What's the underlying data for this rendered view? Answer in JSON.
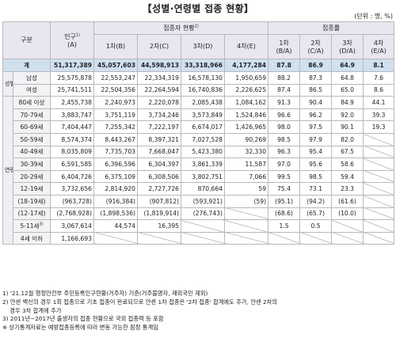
{
  "title": "【성별·연령별 접종 현황】",
  "unit": "(단위 : 명, %)",
  "header": {
    "category": "구분",
    "population": "인구",
    "population_sup": "1)",
    "population_sub": "(A)",
    "vaccinated": "접종자 현황",
    "vaccinated_sup": "2)",
    "rate": "접종률",
    "dose1": "1차(B)",
    "dose2": "2차(C)",
    "dose3": "3차(D)",
    "dose4": "4차(E)",
    "r1": "1차",
    "r1b": "(B/A)",
    "r2": "2차",
    "r2b": "(C/A)",
    "r3": "3차",
    "r3b": "(D/A)",
    "r4": "4차",
    "r4b": "(E/A)"
  },
  "total": {
    "label": "계",
    "pop": "51,317,389",
    "d1": "45,057,603",
    "d2": "44,598,913",
    "d3": "33,318,966",
    "d4": "4,177,284",
    "r1": "87.8",
    "r2": "86.9",
    "r3": "64.9",
    "r4": "8.1"
  },
  "gender_group": "성별",
  "gender": [
    {
      "label": "남성",
      "pop": "25,575,878",
      "d1": "22,553,247",
      "d2": "22,334,319",
      "d3": "16,578,130",
      "d4": "1,950,659",
      "r1": "88.2",
      "r2": "87.3",
      "r3": "64.8",
      "r4": "7.6"
    },
    {
      "label": "여성",
      "pop": "25,741,511",
      "d1": "22,504,356",
      "d2": "22,264,594",
      "d3": "16,740,836",
      "d4": "2,226,625",
      "r1": "87.4",
      "r2": "86.5",
      "r3": "65.0",
      "r4": "8.6"
    }
  ],
  "age_group": "연령",
  "age": [
    {
      "label": "80세 이상",
      "pop": "2,455,738",
      "d1": "2,240,973",
      "d2": "2,220,078",
      "d3": "2,085,438",
      "d4": "1,084,162",
      "r1": "91.3",
      "r2": "90.4",
      "r3": "84.9",
      "r4": "44.1"
    },
    {
      "label": "70-79세",
      "pop": "3,883,747",
      "d1": "3,751,119",
      "d2": "3,734,246",
      "d3": "3,573,849",
      "d4": "1,524,846",
      "r1": "96.6",
      "r2": "96.2",
      "r3": "92.0",
      "r4": "39.3"
    },
    {
      "label": "60-69세",
      "pop": "7,404,447",
      "d1": "7,255,342",
      "d2": "7,222,197",
      "d3": "6,674,017",
      "d4": "1,426,965",
      "r1": "98.0",
      "r2": "97.5",
      "r3": "90.1",
      "r4": "19.3"
    },
    {
      "label": "50-59세",
      "pop": "8,574,374",
      "d1": "8,443,267",
      "d2": "8,397,321",
      "d3": "7,027,528",
      "d4": "90,269",
      "r1": "98.5",
      "r2": "97.9",
      "r3": "82.0",
      "r4": ""
    },
    {
      "label": "40-49세",
      "pop": "8,035,809",
      "d1": "7,735,703",
      "d2": "7,668,047",
      "d3": "5,423,380",
      "d4": "32,330",
      "r1": "96.3",
      "r2": "95.4",
      "r3": "67.5",
      "r4": ""
    },
    {
      "label": "30-39세",
      "pop": "6,591,585",
      "d1": "6,396,596",
      "d2": "6,304,397",
      "d3": "3,861,339",
      "d4": "11,587",
      "r1": "97.0",
      "r2": "95.6",
      "r3": "58.6",
      "r4": ""
    },
    {
      "label": "20-29세",
      "pop": "6,404,726",
      "d1": "6,375,109",
      "d2": "6,308,506",
      "d3": "3,802,751",
      "d4": "7,066",
      "r1": "99.5",
      "r2": "98.5",
      "r3": "59.4",
      "r4": ""
    },
    {
      "label": "12-19세",
      "pop": "3,732,656",
      "d1": "2,814,920",
      "d2": "2,727,726",
      "d3": "870,664",
      "d4": "59",
      "r1": "75.4",
      "r2": "73.1",
      "r3": "23.3",
      "r4": ""
    }
  ],
  "age_sub": [
    {
      "label": "(18-19세)",
      "pop": "(963,728)",
      "d1": "(916,384)",
      "d2": "(907,812)",
      "d3": "(593,921)",
      "d4": "(59)",
      "r1": "(95.1)",
      "r2": "(94.2)",
      "r3": "(61.6)",
      "r4": ""
    },
    {
      "label": "(12-17세)",
      "pop": "(2,768,928)",
      "d1": "(1,898,536)",
      "d2": "(1,819,914)",
      "d3": "(276,743)",
      "d4": "",
      "r1": "(68.6)",
      "r2": "(65.7)",
      "r3": "(10.0)",
      "r4": ""
    }
  ],
  "age_low": [
    {
      "label": "5-11세",
      "sup": "3)",
      "pop": "3,067,614",
      "d1": "44,574",
      "d2": "16,395",
      "d3": "",
      "d4": "",
      "r1": "1.5",
      "r2": "0.5",
      "r3": "",
      "r4": ""
    },
    {
      "label": "4세 이하",
      "sup": "",
      "pop": "1,166,693",
      "d1": "",
      "d2": "",
      "d3": "",
      "d4": "",
      "r1": "",
      "r2": "",
      "r3": "",
      "r4": ""
    }
  ],
  "notes": [
    "1) '21.12월 행정안전부 주민등록인구현황(거주자) 기준(거주불명자, 재외국민 제외)",
    "2) 얀센 백신의 경우 1회 접종으로 기초 접종이 완료되므로 얀센 1차 접종은 '2차 접종' 합계에도 추가, 얀센 2차의",
    "    경우 3차 합계에 추가",
    "3) 2011년~2017년 출생자의 접종 현황으로 국외 접종력 등 포함",
    "※ 상기통계자료는 예방접종등록에 따라 변동 가능한 잠정 통계임"
  ]
}
